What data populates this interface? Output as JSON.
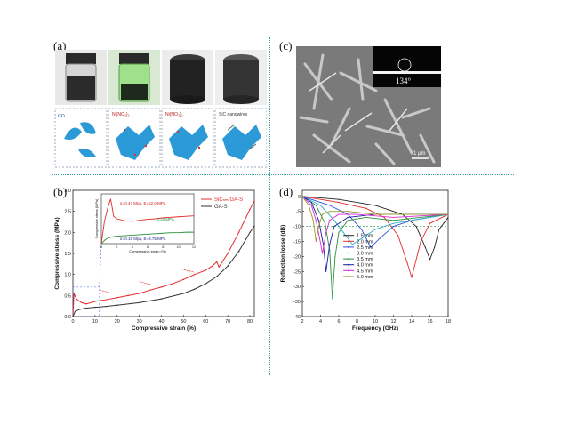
{
  "figure": {
    "panel_labels": [
      "(a)",
      "(b)",
      "(c)",
      "(d)"
    ]
  },
  "panel_a": {
    "schematic_labels": [
      "GO",
      "Ni(NO₃)₂",
      "Ni(NO₃)₂",
      "SiC nanowires"
    ],
    "photo_liquids": [
      "dark-suspension",
      "green-solution",
      "black-gel",
      "black-aerogel"
    ]
  },
  "panel_c": {
    "contact_angle": "134°",
    "scale_bar": "1 μm"
  },
  "chart_data": [
    {
      "type": "line",
      "panel": "(b)",
      "xlabel": "Compressive strain (%)",
      "ylabel": "Compressive stress (MPa)",
      "xlim": [
        0,
        82
      ],
      "ylim": [
        0,
        3.0
      ],
      "xticks": [
        0,
        10,
        20,
        30,
        40,
        50,
        60,
        70,
        80
      ],
      "yticks": [
        0.0,
        0.5,
        1.0,
        1.5,
        2.0,
        2.5,
        3.0
      ],
      "legend": [
        "SiCₙₘ/GA-S",
        "GA-S"
      ],
      "legend_position": "top-right",
      "series": [
        {
          "name": "SiCₙₘ/GA-S",
          "color": "#e32b2b",
          "x": [
            0,
            0.5,
            1.5,
            2.5,
            4,
            6,
            10,
            15,
            20,
            25,
            30,
            35,
            40,
            45,
            50,
            55,
            60,
            63,
            65,
            66,
            70,
            75,
            80,
            82
          ],
          "y": [
            0,
            0.55,
            0.42,
            0.38,
            0.33,
            0.3,
            0.36,
            0.4,
            0.45,
            0.5,
            0.55,
            0.63,
            0.7,
            0.78,
            0.88,
            1.0,
            1.1,
            1.2,
            1.3,
            1.18,
            1.5,
            2.0,
            2.55,
            2.75
          ]
        },
        {
          "name": "GA-S",
          "color": "#333333",
          "x": [
            0,
            1,
            3,
            6,
            10,
            15,
            20,
            30,
            40,
            50,
            55,
            60,
            65,
            70,
            75,
            80,
            82
          ],
          "y": [
            0,
            0.12,
            0.17,
            0.2,
            0.22,
            0.24,
            0.27,
            0.33,
            0.42,
            0.55,
            0.65,
            0.78,
            0.95,
            1.2,
            1.55,
            2.0,
            2.15
          ]
        }
      ],
      "inset": {
        "xlabel": "Compressive strain (%)",
        "ylabel": "Compressive stress (MPa)",
        "xlim": [
          0,
          12
        ],
        "xticks": [
          0,
          2,
          4,
          6,
          8,
          10,
          12
        ],
        "annotations": [
          "σ=0.47 Mpa, E=52.0 MPa",
          "0.34 MPa",
          "σ=0.15 Mpa, E=3.75 MPa"
        ],
        "series": [
          {
            "name": "SiCₙₘ/GA-S",
            "color": "#e32b2b",
            "x": [
              0,
              0.4,
              0.8,
              1.2,
              1.6,
              2.0,
              3,
              4,
              5,
              6,
              7,
              8,
              9,
              10,
              11,
              12
            ],
            "y": [
              0,
              0.45,
              0.7,
              0.9,
              0.55,
              0.5,
              0.46,
              0.45,
              0.47,
              0.49,
              0.5,
              0.52,
              0.53,
              0.54,
              0.55,
              0.56
            ]
          },
          {
            "name": "GA-S",
            "color": "#2a8f3c",
            "x": [
              0,
              0.5,
              1,
              1.5,
              2,
              3,
              4,
              5,
              6,
              7,
              8,
              9,
              10,
              11,
              12
            ],
            "y": [
              0,
              0.08,
              0.12,
              0.14,
              0.15,
              0.16,
              0.17,
              0.18,
              0.19,
              0.2,
              0.21,
              0.22,
              0.22,
              0.23,
              0.23
            ]
          }
        ]
      }
    },
    {
      "type": "line",
      "panel": "(d)",
      "xlabel": "Frequency (GHz)",
      "ylabel": "Reflection losse (dB)",
      "xlim": [
        2,
        18
      ],
      "ylim": [
        -40,
        2
      ],
      "xticks": [
        2,
        4,
        6,
        8,
        10,
        12,
        14,
        16,
        18
      ],
      "yticks": [
        0,
        -5,
        -10,
        -15,
        -20,
        -25,
        -30,
        -35,
        -40
      ],
      "legend_position": "center",
      "reference_line": -10,
      "series": [
        {
          "name": "1.5 mm",
          "color": "#222222",
          "x": [
            2,
            6,
            10,
            13,
            14.5,
            15.5,
            16,
            16.5,
            17,
            18
          ],
          "y": [
            0,
            -1,
            -3,
            -6,
            -10,
            -17,
            -21,
            -17,
            -11,
            -7
          ]
        },
        {
          "name": "2.0 mm",
          "color": "#e32b2b",
          "x": [
            2,
            6,
            9,
            11,
            12.5,
            13.5,
            14,
            15,
            16,
            18
          ],
          "y": [
            0,
            -2,
            -4,
            -7,
            -13,
            -22,
            -27,
            -15,
            -9,
            -6
          ]
        },
        {
          "name": "2.5 mm",
          "color": "#2b4fe3",
          "x": [
            2,
            5,
            7,
            8.5,
            9.5,
            10.5,
            12,
            14,
            18
          ],
          "y": [
            0,
            -3,
            -6,
            -11,
            -17,
            -14,
            -10,
            -8,
            -6
          ]
        },
        {
          "name": "3.0 mm",
          "color": "#2bb0c8",
          "x": [
            2,
            4,
            5.5,
            6.5,
            7.5,
            8.5,
            10,
            12,
            18
          ],
          "y": [
            0,
            -3,
            -8,
            -12,
            -16,
            -14,
            -11,
            -9,
            -6
          ]
        },
        {
          "name": "3.5 mm",
          "color": "#2a8f3c",
          "x": [
            2,
            3.5,
            4.5,
            5,
            5.3,
            5.6,
            6,
            7,
            9,
            12,
            18
          ],
          "y": [
            0,
            -3,
            -9,
            -18,
            -34,
            -20,
            -12,
            -8,
            -7,
            -8,
            -6
          ]
        },
        {
          "name": "4.0 mm",
          "color": "#1a1aa0",
          "x": [
            2,
            3,
            3.8,
            4.3,
            4.6,
            5,
            5.5,
            7,
            10,
            18
          ],
          "y": [
            0,
            -2,
            -8,
            -16,
            -25,
            -16,
            -10,
            -7,
            -6,
            -6
          ]
        },
        {
          "name": "4.5 mm",
          "color": "#d82bd8",
          "x": [
            2,
            3,
            3.5,
            3.9,
            4.2,
            4.6,
            5,
            6,
            8,
            12,
            18
          ],
          "y": [
            0,
            -3,
            -8,
            -14,
            -19,
            -12,
            -8,
            -6,
            -6,
            -7,
            -6
          ]
        },
        {
          "name": "5.0 mm",
          "color": "#9a9a2b",
          "x": [
            2,
            2.7,
            3.2,
            3.5,
            3.8,
            4.2,
            5,
            7,
            10,
            18
          ],
          "y": [
            0,
            -3,
            -8,
            -15,
            -10,
            -6,
            -5,
            -5,
            -6,
            -6
          ]
        }
      ]
    }
  ]
}
